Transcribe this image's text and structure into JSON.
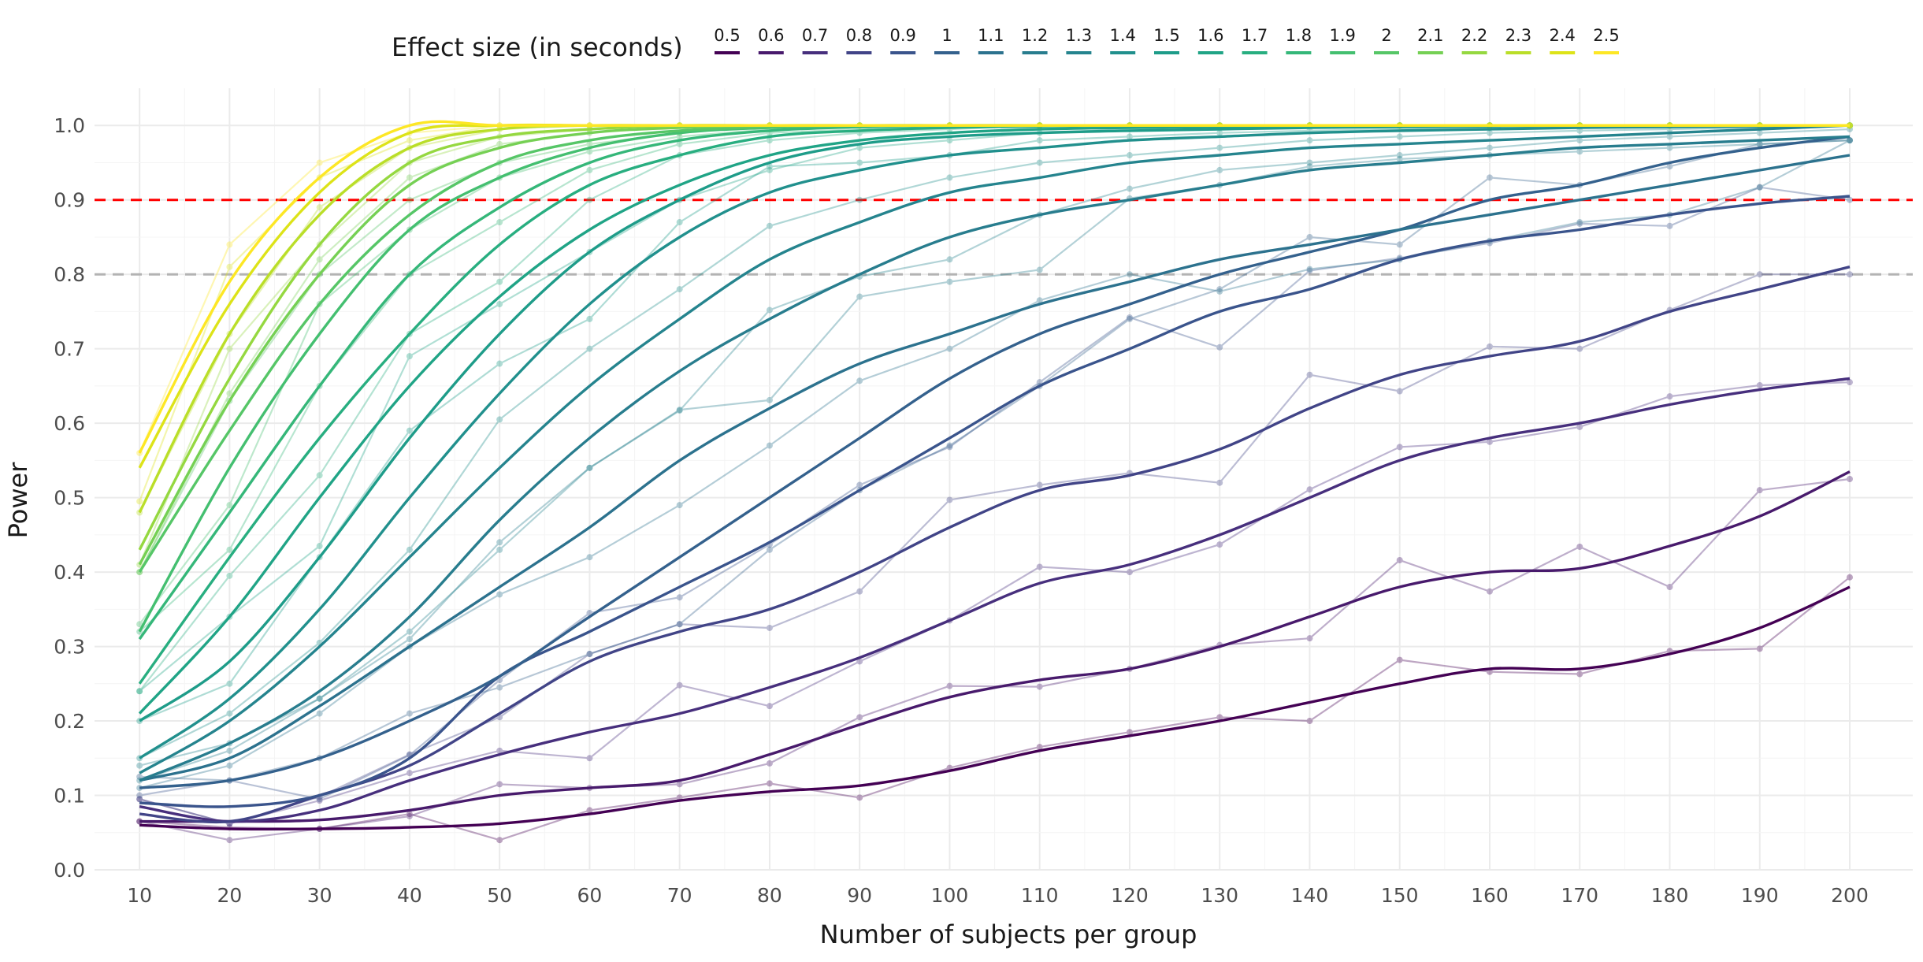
{
  "chart_data": {
    "type": "line",
    "title": "",
    "xlabel": "Number of subjects per group",
    "ylabel": "Power",
    "x": [
      10,
      20,
      30,
      40,
      50,
      60,
      70,
      80,
      90,
      100,
      110,
      120,
      130,
      140,
      150,
      160,
      170,
      180,
      190,
      200
    ],
    "x_ticks": [
      "10",
      "20",
      "30",
      "40",
      "50",
      "60",
      "70",
      "80",
      "90",
      "100",
      "110",
      "120",
      "130",
      "140",
      "150",
      "160",
      "170",
      "180",
      "190",
      "200"
    ],
    "y_ticks": [
      "0.0",
      "0.1",
      "0.2",
      "0.3",
      "0.4",
      "0.5",
      "0.6",
      "0.7",
      "0.8",
      "0.9",
      "1.0"
    ],
    "xlim": [
      5,
      207
    ],
    "ylim": [
      0,
      1.05
    ],
    "grid": true,
    "legend_title": "Effect size (in seconds)",
    "legend_position": "top",
    "reference_lines": [
      {
        "y": 0.9,
        "color": "#ff0000",
        "style": "dashed"
      },
      {
        "y": 0.8,
        "color": "#b3b3b3",
        "style": "dashed"
      }
    ],
    "series": [
      {
        "name": "0.5",
        "color": "#440154",
        "smooth": [
          0.06,
          0.055,
          0.055,
          0.057,
          0.062,
          0.075,
          0.093,
          0.105,
          0.113,
          0.133,
          0.16,
          0.18,
          0.2,
          0.225,
          0.25,
          0.27,
          0.27,
          0.29,
          0.325,
          0.38
        ],
        "points": [
          0.065,
          0.057,
          0.055,
          0.075,
          0.04,
          0.08,
          0.097,
          0.116,
          0.097,
          0.137,
          0.165,
          0.185,
          0.205,
          0.2,
          0.282,
          0.266,
          0.263,
          0.294,
          0.297,
          0.393
        ]
      },
      {
        "name": "0.6",
        "color": "#481a6c",
        "smooth": [
          0.065,
          0.065,
          0.067,
          0.08,
          0.1,
          0.11,
          0.12,
          0.155,
          0.195,
          0.232,
          0.255,
          0.27,
          0.3,
          0.34,
          0.38,
          0.4,
          0.405,
          0.435,
          0.475,
          0.535
        ],
        "points": [
          0.065,
          0.04,
          0.055,
          0.072,
          0.115,
          0.11,
          0.115,
          0.143,
          0.205,
          0.247,
          0.246,
          0.27,
          0.302,
          0.311,
          0.416,
          0.374,
          0.434,
          0.38,
          0.51,
          0.525
        ]
      },
      {
        "name": "0.7",
        "color": "#472f7d",
        "smooth": [
          0.085,
          0.065,
          0.08,
          0.12,
          0.155,
          0.185,
          0.21,
          0.245,
          0.285,
          0.335,
          0.385,
          0.41,
          0.45,
          0.5,
          0.55,
          0.58,
          0.6,
          0.625,
          0.645,
          0.66
        ],
        "points": [
          0.095,
          0.062,
          0.093,
          0.13,
          0.16,
          0.15,
          0.248,
          0.22,
          0.28,
          0.335,
          0.407,
          0.4,
          0.437,
          0.511,
          0.568,
          0.575,
          0.595,
          0.636,
          0.651,
          0.655
        ]
      },
      {
        "name": "0.8",
        "color": "#414487",
        "smooth": [
          0.075,
          0.065,
          0.1,
          0.14,
          0.21,
          0.28,
          0.32,
          0.35,
          0.4,
          0.46,
          0.51,
          0.53,
          0.565,
          0.62,
          0.665,
          0.69,
          0.71,
          0.75,
          0.78,
          0.81
        ],
        "points": [
          0.095,
          0.062,
          0.098,
          0.155,
          0.205,
          0.29,
          0.33,
          0.325,
          0.374,
          0.497,
          0.517,
          0.533,
          0.52,
          0.665,
          0.643,
          0.703,
          0.7,
          0.752,
          0.8,
          0.8
        ]
      },
      {
        "name": "0.9",
        "color": "#3a548c",
        "smooth": [
          0.09,
          0.085,
          0.1,
          0.15,
          0.26,
          0.32,
          0.38,
          0.44,
          0.51,
          0.58,
          0.65,
          0.7,
          0.75,
          0.78,
          0.82,
          0.845,
          0.86,
          0.88,
          0.895,
          0.905
        ],
        "points": [
          0.1,
          0.12,
          0.095,
          0.154,
          0.255,
          0.345,
          0.366,
          0.437,
          0.517,
          0.568,
          0.655,
          0.742,
          0.702,
          0.805,
          0.822,
          0.842,
          0.868,
          0.865,
          0.917,
          0.9
        ]
      },
      {
        "name": "1",
        "color": "#34618d",
        "smooth": [
          0.11,
          0.12,
          0.15,
          0.2,
          0.26,
          0.34,
          0.42,
          0.5,
          0.58,
          0.66,
          0.72,
          0.76,
          0.8,
          0.83,
          0.86,
          0.9,
          0.92,
          0.95,
          0.97,
          0.985
        ],
        "points": [
          0.125,
          0.12,
          0.15,
          0.21,
          0.245,
          0.29,
          0.33,
          0.43,
          0.51,
          0.57,
          0.65,
          0.74,
          0.78,
          0.85,
          0.84,
          0.93,
          0.92,
          0.945,
          0.975,
          0.98
        ]
      },
      {
        "name": "1.1",
        "color": "#2c728e",
        "smooth": [
          0.12,
          0.15,
          0.22,
          0.3,
          0.38,
          0.46,
          0.55,
          0.62,
          0.68,
          0.72,
          0.76,
          0.79,
          0.82,
          0.84,
          0.86,
          0.88,
          0.9,
          0.92,
          0.94,
          0.96
        ],
        "points": [
          0.11,
          0.14,
          0.21,
          0.3,
          0.37,
          0.42,
          0.49,
          0.57,
          0.657,
          0.7,
          0.765,
          0.8,
          0.777,
          0.807,
          0.82,
          0.845,
          0.87,
          0.88,
          0.917,
          0.98
        ]
      },
      {
        "name": "1.2",
        "color": "#287d8e",
        "smooth": [
          0.12,
          0.17,
          0.24,
          0.34,
          0.47,
          0.58,
          0.67,
          0.74,
          0.8,
          0.85,
          0.88,
          0.9,
          0.92,
          0.94,
          0.95,
          0.96,
          0.97,
          0.975,
          0.98,
          0.985
        ],
        "points": [
          0.12,
          0.16,
          0.23,
          0.31,
          0.44,
          0.54,
          0.618,
          0.631,
          0.77,
          0.79,
          0.806,
          0.902,
          0.92,
          0.945,
          0.955,
          0.96,
          0.965,
          0.97,
          0.975,
          0.98
        ]
      },
      {
        "name": "1.3",
        "color": "#25848e",
        "smooth": [
          0.13,
          0.2,
          0.3,
          0.42,
          0.54,
          0.65,
          0.74,
          0.82,
          0.87,
          0.91,
          0.93,
          0.95,
          0.96,
          0.97,
          0.975,
          0.98,
          0.985,
          0.99,
          0.995,
          1.0
        ],
        "points": [
          0.14,
          0.17,
          0.23,
          0.32,
          0.43,
          0.54,
          0.617,
          0.752,
          0.797,
          0.82,
          0.88,
          0.915,
          0.94,
          0.95,
          0.96,
          0.97,
          0.98,
          0.985,
          0.99,
          0.995
        ]
      },
      {
        "name": "1.4",
        "color": "#21908d",
        "smooth": [
          0.15,
          0.23,
          0.35,
          0.5,
          0.64,
          0.76,
          0.85,
          0.91,
          0.94,
          0.96,
          0.97,
          0.98,
          0.985,
          0.99,
          0.993,
          0.995,
          0.997,
          0.998,
          0.999,
          1.0
        ],
        "points": [
          0.15,
          0.21,
          0.305,
          0.43,
          0.605,
          0.7,
          0.78,
          0.865,
          0.9,
          0.93,
          0.95,
          0.96,
          0.97,
          0.98,
          0.985,
          0.99,
          0.993,
          0.995,
          0.997,
          1.0
        ]
      },
      {
        "name": "1.5",
        "color": "#1e9c89",
        "smooth": [
          0.2,
          0.28,
          0.42,
          0.58,
          0.72,
          0.83,
          0.9,
          0.95,
          0.975,
          0.985,
          0.99,
          0.993,
          0.995,
          0.997,
          0.998,
          0.999,
          1.0,
          1.0,
          1.0,
          1.0
        ],
        "points": [
          0.2,
          0.25,
          0.42,
          0.59,
          0.68,
          0.74,
          0.87,
          0.945,
          0.95,
          0.96,
          0.98,
          0.985,
          0.99,
          0.993,
          0.995,
          0.997,
          1.0,
          1.0,
          1.0,
          1.0
        ]
      },
      {
        "name": "1.6",
        "color": "#20a486",
        "smooth": [
          0.21,
          0.34,
          0.5,
          0.65,
          0.77,
          0.86,
          0.92,
          0.96,
          0.98,
          0.99,
          0.995,
          0.997,
          0.998,
          0.999,
          1.0,
          1.0,
          1.0,
          1.0,
          1.0,
          1.0
        ],
        "points": [
          0.24,
          0.34,
          0.435,
          0.69,
          0.76,
          0.83,
          0.9,
          0.94,
          0.97,
          0.98,
          0.99,
          0.995,
          1.0,
          1.0,
          1.0,
          1.0,
          1.0,
          1.0,
          1.0,
          1.0
        ]
      },
      {
        "name": "1.7",
        "color": "#28ae80",
        "smooth": [
          0.25,
          0.42,
          0.58,
          0.72,
          0.84,
          0.92,
          0.96,
          0.985,
          0.993,
          0.997,
          0.999,
          1.0,
          1.0,
          1.0,
          1.0,
          1.0,
          1.0,
          1.0,
          1.0,
          1.0
        ],
        "points": [
          0.24,
          0.395,
          0.53,
          0.72,
          0.79,
          0.9,
          0.96,
          0.98,
          0.99,
          0.995,
          1.0,
          1.0,
          1.0,
          1.0,
          1.0,
          1.0,
          1.0,
          1.0,
          1.0,
          1.0
        ]
      },
      {
        "name": "1.8",
        "color": "#35b779",
        "smooth": [
          0.31,
          0.48,
          0.65,
          0.8,
          0.89,
          0.95,
          0.98,
          0.993,
          0.998,
          1.0,
          1.0,
          1.0,
          1.0,
          1.0,
          1.0,
          1.0,
          1.0,
          1.0,
          1.0,
          1.0
        ],
        "points": [
          0.32,
          0.43,
          0.65,
          0.8,
          0.87,
          0.94,
          0.975,
          0.99,
          0.995,
          1.0,
          1.0,
          1.0,
          1.0,
          1.0,
          1.0,
          1.0,
          1.0,
          1.0,
          1.0,
          1.0
        ]
      },
      {
        "name": "1.9",
        "color": "#44bf70",
        "smooth": [
          0.32,
          0.54,
          0.72,
          0.86,
          0.93,
          0.97,
          0.99,
          0.997,
          1.0,
          1.0,
          1.0,
          1.0,
          1.0,
          1.0,
          1.0,
          1.0,
          1.0,
          1.0,
          1.0,
          1.0
        ],
        "points": [
          0.33,
          0.49,
          0.76,
          0.86,
          0.93,
          0.965,
          0.985,
          0.995,
          1.0,
          1.0,
          1.0,
          1.0,
          1.0,
          1.0,
          1.0,
          1.0,
          1.0,
          1.0,
          1.0,
          1.0
        ]
      },
      {
        "name": "2",
        "color": "#56c667",
        "smooth": [
          0.4,
          0.59,
          0.76,
          0.88,
          0.95,
          0.98,
          0.993,
          0.998,
          1.0,
          1.0,
          1.0,
          1.0,
          1.0,
          1.0,
          1.0,
          1.0,
          1.0,
          1.0,
          1.0,
          1.0
        ],
        "points": [
          0.4,
          0.63,
          0.8,
          0.9,
          0.95,
          0.975,
          0.99,
          1.0,
          1.0,
          1.0,
          1.0,
          1.0,
          1.0,
          1.0,
          1.0,
          1.0,
          1.0,
          1.0,
          1.0,
          1.0
        ]
      },
      {
        "name": "2.1",
        "color": "#75d054",
        "smooth": [
          0.41,
          0.63,
          0.8,
          0.92,
          0.97,
          0.99,
          0.997,
          1.0,
          1.0,
          1.0,
          1.0,
          1.0,
          1.0,
          1.0,
          1.0,
          1.0,
          1.0,
          1.0,
          1.0,
          1.0
        ],
        "points": [
          0.4,
          0.64,
          0.82,
          0.93,
          0.975,
          0.99,
          1.0,
          1.0,
          1.0,
          1.0,
          1.0,
          1.0,
          1.0,
          1.0,
          1.0,
          1.0,
          1.0,
          1.0,
          1.0,
          1.0
        ]
      },
      {
        "name": "2.2",
        "color": "#95d840",
        "smooth": [
          0.43,
          0.66,
          0.84,
          0.95,
          0.985,
          0.995,
          1.0,
          1.0,
          1.0,
          1.0,
          1.0,
          1.0,
          1.0,
          1.0,
          1.0,
          1.0,
          1.0,
          1.0,
          1.0,
          1.0
        ],
        "points": [
          0.41,
          0.7,
          0.84,
          0.95,
          0.985,
          0.995,
          1.0,
          1.0,
          1.0,
          1.0,
          1.0,
          1.0,
          1.0,
          1.0,
          1.0,
          1.0,
          1.0,
          1.0,
          1.0,
          1.0
        ]
      },
      {
        "name": "2.3",
        "color": "#bade28",
        "smooth": [
          0.48,
          0.72,
          0.88,
          0.97,
          0.995,
          1.0,
          1.0,
          1.0,
          1.0,
          1.0,
          1.0,
          1.0,
          1.0,
          1.0,
          1.0,
          1.0,
          1.0,
          1.0,
          1.0,
          1.0
        ],
        "points": [
          0.48,
          0.72,
          0.89,
          0.97,
          0.995,
          1.0,
          1.0,
          1.0,
          1.0,
          1.0,
          1.0,
          1.0,
          1.0,
          1.0,
          1.0,
          1.0,
          1.0,
          1.0,
          1.0,
          1.0
        ]
      },
      {
        "name": "2.4",
        "color": "#dde318",
        "smooth": [
          0.54,
          0.76,
          0.91,
          0.99,
          1.0,
          1.0,
          1.0,
          1.0,
          1.0,
          1.0,
          1.0,
          1.0,
          1.0,
          1.0,
          1.0,
          1.0,
          1.0,
          1.0,
          1.0,
          1.0
        ],
        "points": [
          0.495,
          0.81,
          0.93,
          0.98,
          1.0,
          1.0,
          1.0,
          1.0,
          1.0,
          1.0,
          1.0,
          1.0,
          1.0,
          1.0,
          1.0,
          1.0,
          1.0,
          1.0,
          1.0,
          1.0
        ]
      },
      {
        "name": "2.5",
        "color": "#fde725",
        "smooth": [
          0.56,
          0.79,
          0.93,
          1.0,
          1.0,
          1.0,
          1.0,
          1.0,
          1.0,
          1.0,
          1.0,
          1.0,
          1.0,
          1.0,
          1.0,
          1.0,
          1.0,
          1.0,
          1.0,
          1.0
        ],
        "points": [
          0.56,
          0.84,
          0.95,
          0.99,
          1.0,
          1.0,
          1.0,
          1.0,
          1.0,
          1.0,
          1.0,
          1.0,
          1.0,
          1.0,
          1.0,
          1.0,
          1.0,
          1.0,
          1.0,
          1.0
        ]
      }
    ]
  }
}
